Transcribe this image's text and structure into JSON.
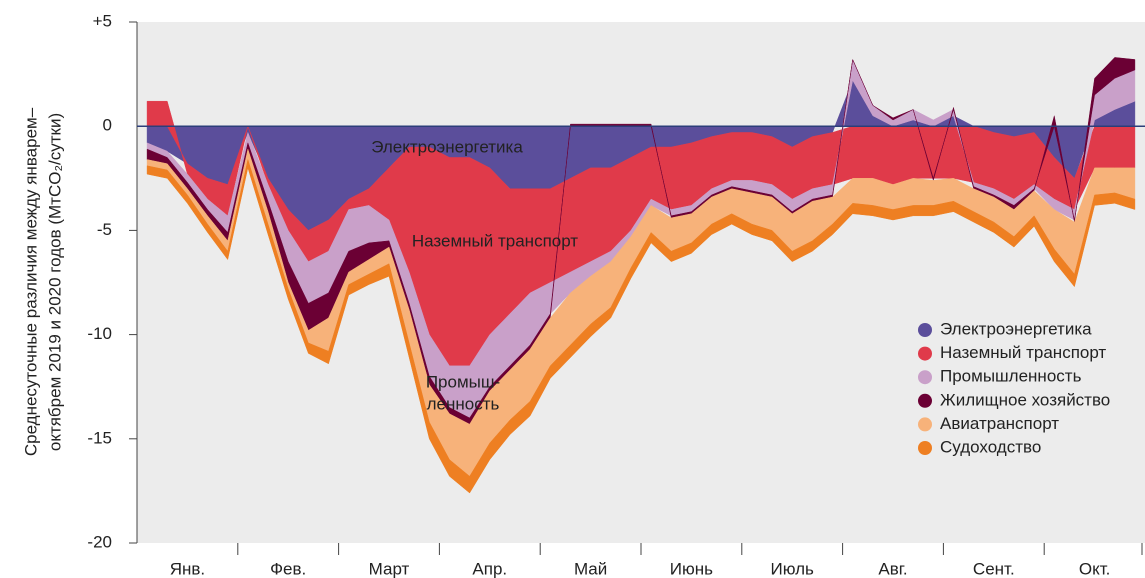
{
  "chart_data": {
    "type": "stacked_area",
    "y_axis_label": [
      "Среднесуточные различия между январем–",
      "октябрем 2019 и 2020 годов (МтCO₂/сутки)"
    ],
    "categories": [
      null,
      null,
      "Янв.",
      null,
      null,
      null,
      null,
      "Фев.",
      null,
      null,
      null,
      null,
      "Март",
      null,
      null,
      null,
      null,
      "Апр.",
      null,
      null,
      null,
      null,
      "Май",
      null,
      null,
      null,
      null,
      "Июнь",
      null,
      null,
      null,
      null,
      "Июль",
      null,
      null,
      null,
      null,
      "Авг.",
      null,
      null,
      null,
      null,
      "Сент.",
      null,
      null,
      null,
      null,
      "Окт.",
      null,
      null
    ],
    "series": [
      {
        "name": "Электроэнергетика",
        "color": "#5b4e9b",
        "values": [
          -0.8,
          -1.2,
          -1.8,
          -2.5,
          -2.8,
          -0.3,
          -2.5,
          -4,
          -5,
          -4.5,
          -3.5,
          -3,
          -2,
          -1,
          -1,
          -1.5,
          -1.5,
          -2,
          -3,
          -3,
          -3,
          -2.5,
          -2,
          -2,
          -1.5,
          -1,
          -1,
          -0.8,
          -0.5,
          -0.3,
          -0.3,
          -0.5,
          -1,
          -0.5,
          -0.3,
          2.2,
          0.5,
          0,
          0.3,
          0,
          0.5,
          0,
          -0.3,
          -0.5,
          -0.3,
          -1.5,
          -2.5,
          0.3,
          0.8,
          1.2
        ]
      },
      {
        "name": "Наземный транспорт",
        "color": "#e03a4a",
        "values": [
          1.2,
          1.2,
          -0.5,
          -1,
          -1.5,
          0,
          -0.3,
          -1,
          -1.5,
          -1.5,
          -0.5,
          -0.8,
          -2.5,
          -6,
          -9,
          -10,
          -10,
          -8,
          -6,
          -5,
          -4.5,
          -4.5,
          -4.5,
          -4,
          -3.5,
          -2.5,
          -3,
          -3,
          -2.5,
          -2.3,
          -2.3,
          -2.3,
          -2.5,
          -2.5,
          -2.5,
          -2.5,
          -2.5,
          -2.8,
          -2.5,
          -2.5,
          -2.5,
          -2.7,
          -2.7,
          -3,
          -2.5,
          -2,
          -1.5,
          -2,
          -2,
          -2
        ]
      },
      {
        "name": "Промышленность",
        "color": "#c9a0c9",
        "values": [
          -0.3,
          -0.3,
          -0.4,
          -0.5,
          -0.8,
          -0.5,
          -0.8,
          -1.5,
          -2,
          -2,
          -2,
          -1.8,
          -1,
          -1.5,
          -2,
          -2,
          -2.5,
          -2.5,
          -2.5,
          -2.5,
          -1.5,
          -1,
          -0.7,
          -0.5,
          -0.3,
          -0.3,
          -0.3,
          -0.3,
          -0.3,
          -0.3,
          -0.5,
          -0.5,
          -0.6,
          -0.5,
          -0.5,
          1,
          0.5,
          0.3,
          0.5,
          0.3,
          0.3,
          -0.2,
          -0.3,
          -0.3,
          -0.2,
          -0.5,
          -0.5,
          1.2,
          1.5,
          1.5
        ]
      },
      {
        "name": "Жилищное хозяйство",
        "color": "#6b0034",
        "values": [
          -0.5,
          -0.3,
          -0.3,
          -0.3,
          -0.4,
          -0.3,
          -0.5,
          -1,
          -1.3,
          -1.2,
          -1,
          -0.8,
          -0.3,
          -0.3,
          -0.4,
          -0.3,
          -0.3,
          -0.2,
          -0.2,
          -0.2,
          -0.2,
          0.1,
          0.1,
          0.1,
          0.1,
          0.1,
          -0.1,
          -0.1,
          -0.1,
          -0.1,
          -0.1,
          -0.1,
          -0.1,
          -0.1,
          -0.1,
          0,
          0,
          0.1,
          0,
          -0.1,
          0.1,
          -0.1,
          -0.1,
          -0.2,
          -0.1,
          0.5,
          -0.1,
          0.8,
          1,
          0.5
        ]
      },
      {
        "name": "Авиатранспорт",
        "color": "#f7b27a",
        "values": [
          -0.3,
          -0.3,
          -0.3,
          -0.4,
          -0.5,
          -0.5,
          -0.6,
          -0.3,
          -0.6,
          -1.6,
          -0.6,
          -0.7,
          -0.8,
          -1.6,
          -1.8,
          -2.2,
          -2.5,
          -2.5,
          -2.4,
          -2.5,
          -2.3,
          -2.5,
          -2.3,
          -2.2,
          -1.5,
          -1.3,
          -1.6,
          -1.4,
          -1.3,
          -1.2,
          -1.5,
          -1.6,
          -1.8,
          -1.9,
          -1.3,
          -1.2,
          -1.3,
          -1.2,
          -1.3,
          -1.2,
          -1.1,
          -1.1,
          -1.2,
          -1.3,
          -1.2,
          -1.9,
          -2.5,
          -1.3,
          -1.2,
          -1.5
        ]
      },
      {
        "name": "Судоходство",
        "color": "#ee7f22",
        "values": [
          -0.4,
          -0.4,
          -0.4,
          -0.4,
          -0.4,
          -0.4,
          -0.5,
          -0.5,
          -0.5,
          -0.6,
          -0.5,
          -0.5,
          -0.6,
          -0.7,
          -0.8,
          -0.8,
          -0.8,
          -0.8,
          -0.7,
          -0.7,
          -0.6,
          -0.6,
          -0.6,
          -0.5,
          -0.5,
          -0.5,
          -0.5,
          -0.5,
          -0.5,
          -0.5,
          -0.5,
          -0.5,
          -0.5,
          -0.5,
          -0.5,
          -0.5,
          -0.5,
          -0.5,
          -0.5,
          -0.5,
          -0.5,
          -0.5,
          -0.5,
          -0.5,
          -0.5,
          -0.6,
          -0.6,
          -0.5,
          -0.5,
          -0.5
        ]
      }
    ],
    "ylim": [
      -20,
      5
    ],
    "yticks": [
      {
        "value": 5,
        "label": "+5"
      },
      0,
      -5,
      -10,
      -15,
      -20
    ],
    "annotations": [
      "Электроэнергетика",
      "Наземный транспорт",
      "Промыш-",
      "ленность"
    ],
    "legend": "right"
  }
}
